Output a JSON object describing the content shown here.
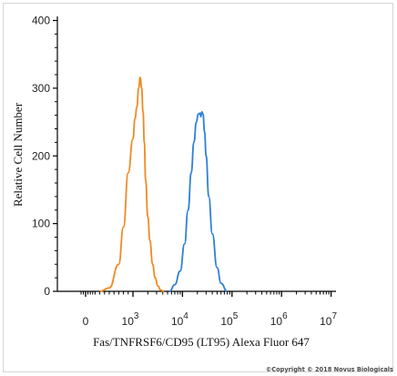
{
  "chart_data": {
    "type": "line",
    "title": "",
    "xlabel": "Fas/TNFRSF6/CD95 (LT95) Alexa Fluor 647",
    "ylabel": "Relative Cell Number",
    "x_scale": "biexponential",
    "xlim": [
      -20,
      10000000
    ],
    "ylim": [
      0,
      400
    ],
    "y_ticks": [
      {
        "value": 0,
        "label": "0"
      },
      {
        "value": 100,
        "label": "100"
      },
      {
        "value": 200,
        "label": "200"
      },
      {
        "value": 300,
        "label": "300"
      },
      {
        "value": 400,
        "label": "400"
      }
    ],
    "x_ticks": [
      {
        "value": 0,
        "base": "0",
        "exp": ""
      },
      {
        "value": 1000,
        "base": "10",
        "exp": "3"
      },
      {
        "value": 10000,
        "base": "10",
        "exp": "4"
      },
      {
        "value": 100000,
        "base": "10",
        "exp": "5"
      },
      {
        "value": 1000000,
        "base": "10",
        "exp": "6"
      },
      {
        "value": 10000000,
        "base": "10",
        "exp": "7"
      }
    ],
    "grid": false,
    "legend": "none",
    "series": [
      {
        "color": "#f08a24",
        "x": [
          300,
          500,
          700,
          800,
          900,
          1000,
          1100,
          1200,
          1300,
          1400,
          1500,
          1600,
          1700,
          1800,
          2000,
          2200,
          2500,
          2800,
          3200,
          3600,
          4200
        ],
        "y": [
          0,
          5,
          40,
          95,
          175,
          225,
          255,
          272,
          300,
          316,
          300,
          265,
          220,
          165,
          110,
          75,
          40,
          20,
          8,
          2,
          0
        ]
      },
      {
        "color": "#2f7fd8",
        "x": [
          5500,
          7000,
          9000,
          11000,
          13000,
          15000,
          17000,
          19000,
          21000,
          22500,
          23500,
          24500,
          26000,
          28000,
          30000,
          34000,
          40000,
          50000,
          60000,
          80000
        ],
        "y": [
          0,
          10,
          30,
          70,
          120,
          175,
          220,
          250,
          262,
          263,
          258,
          265,
          262,
          235,
          200,
          140,
          85,
          35,
          12,
          0
        ]
      }
    ]
  },
  "footer": {
    "copyright": "©Copyright © 2018 Novus Biologicals"
  }
}
